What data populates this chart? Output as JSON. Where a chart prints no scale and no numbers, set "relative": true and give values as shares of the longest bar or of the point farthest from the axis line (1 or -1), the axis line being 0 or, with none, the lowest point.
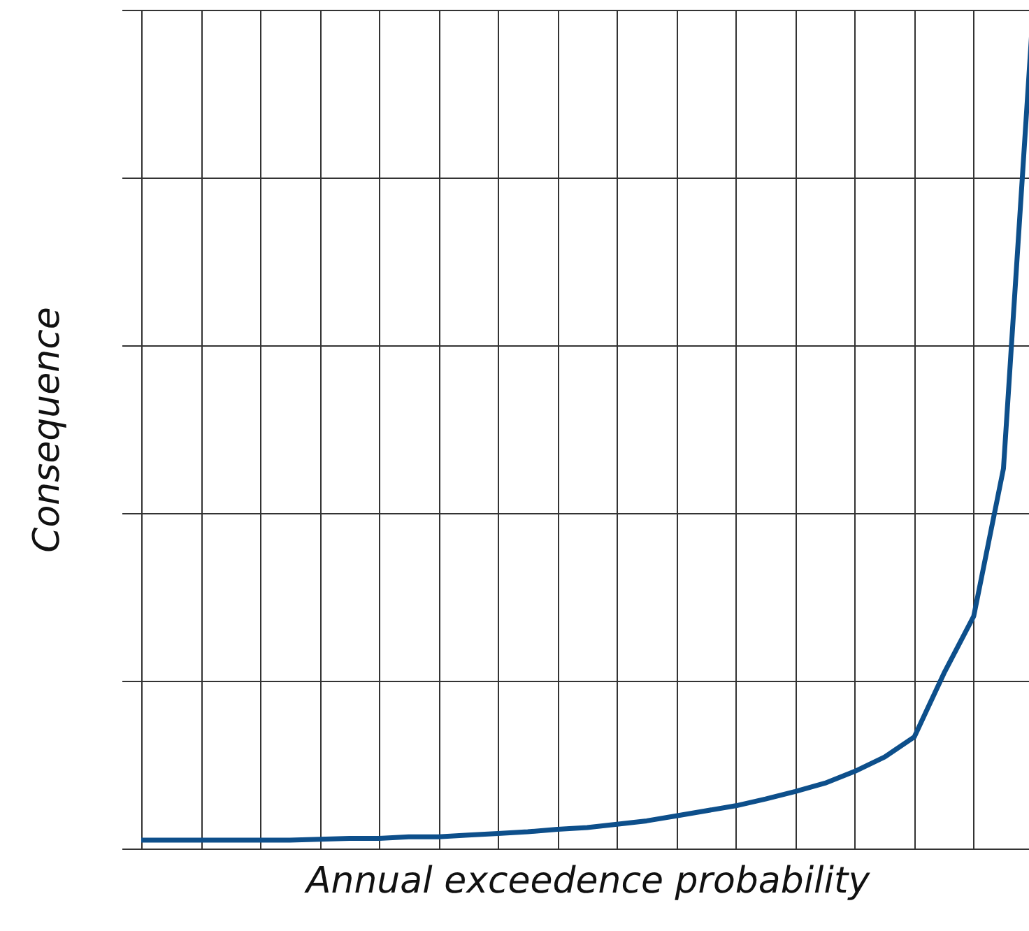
{
  "chart_data": {
    "type": "line",
    "xlabel": "Annual exceedence probability",
    "ylabel": "Consequence",
    "relative": true,
    "grid": true,
    "categories": [
      null,
      null,
      null,
      null,
      null,
      null,
      null,
      null,
      null,
      null,
      null,
      null,
      null,
      null,
      null,
      null,
      null,
      null,
      null,
      null,
      null,
      null,
      null,
      null,
      null,
      null,
      null,
      null,
      null,
      null,
      null
    ],
    "series": [
      {
        "color": "#0d4f8b",
        "values": [
          0.01,
          0.01,
          0.01,
          0.01,
          0.01,
          0.01,
          0.011,
          0.012,
          0.012,
          0.014,
          0.014,
          0.016,
          0.018,
          0.02,
          0.023,
          0.025,
          0.029,
          0.033,
          0.039,
          0.045,
          0.051,
          0.059,
          0.068,
          0.078,
          0.092,
          0.109,
          0.133,
          0.209,
          0.277,
          0.453,
          1
        ]
      }
    ],
    "marker": "none",
    "line_style": "solid"
  }
}
